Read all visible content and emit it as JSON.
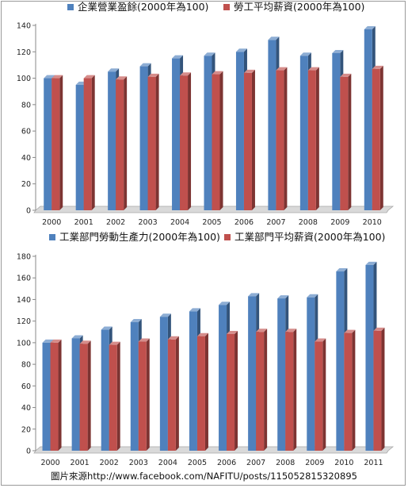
{
  "source_credit": "圖片來源http://www.facebook.com/NAFITU/posts/115052815320895",
  "colors": {
    "blue": "#4f81bd",
    "red": "#c0504d"
  },
  "chart_data": [
    {
      "type": "bar",
      "categories": [
        "2000",
        "2001",
        "2002",
        "2003",
        "2004",
        "2005",
        "2006",
        "2007",
        "2008",
        "2009",
        "2010"
      ],
      "series": [
        {
          "name": "企業營業盈餘(2000年為100)",
          "color": "#4f81bd",
          "values": [
            100,
            95,
            105,
            109,
            115,
            117,
            120,
            129,
            117,
            119,
            137
          ]
        },
        {
          "name": "勞工平均薪資(2000年為100)",
          "color": "#c0504d",
          "values": [
            100,
            100,
            99,
            101,
            102,
            103,
            104,
            106,
            106,
            101,
            107
          ]
        }
      ],
      "yticks": [
        "0",
        "20",
        "40",
        "60",
        "80",
        "100",
        "120",
        "140"
      ],
      "ylim": [
        0,
        140
      ],
      "grid": false,
      "legend_position": "top"
    },
    {
      "type": "bar",
      "categories": [
        "2000",
        "2001",
        "2002",
        "2003",
        "2004",
        "2005",
        "2006",
        "2007",
        "2008",
        "2009",
        "2010",
        "2011"
      ],
      "series": [
        {
          "name": "工業部門勞動生產力(2000年為100)",
          "color": "#4f81bd",
          "values": [
            100,
            104,
            112,
            119,
            124,
            129,
            135,
            143,
            141,
            142,
            166,
            172
          ]
        },
        {
          "name": "工業部門平均薪資(2000年為100)",
          "color": "#c0504d",
          "values": [
            100,
            99,
            98,
            101,
            103,
            106,
            108,
            110,
            110,
            101,
            109,
            111
          ]
        }
      ],
      "yticks": [
        "0",
        "20",
        "40",
        "60",
        "80",
        "100",
        "120",
        "140",
        "160",
        "180"
      ],
      "ylim": [
        0,
        180
      ],
      "grid": false,
      "legend_position": "top"
    }
  ]
}
